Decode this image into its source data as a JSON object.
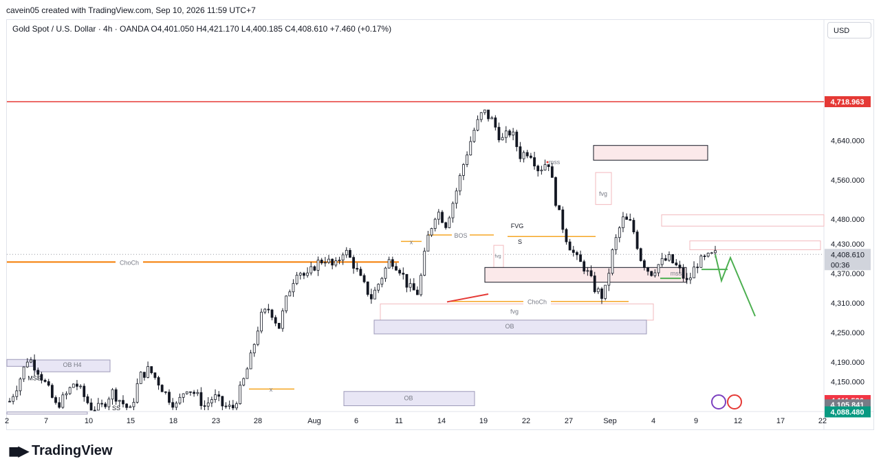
{
  "header": {
    "attribution": "cavein05 created with TradingView.com, Sep 10, 2026 11:59 UTC+7"
  },
  "legend": {
    "symbol": "Gold Spot / U.S. Dollar · 4h · OANDA",
    "open": "O4,401.050",
    "high": "H4,421.170",
    "low": "L4,400.185",
    "close": "C4,408.610",
    "change": "+7.460 (+0.17%)"
  },
  "currency_button": "USD",
  "brand": "TradingView",
  "colors": {
    "up": "#131722",
    "down": "#131722",
    "red_line": "#e53935",
    "orange": "#f57c00",
    "gold": "#f5a623",
    "zone_pink": "#fbe9ea",
    "zone_purple": "#e8e6f5",
    "price_label": "#d1d4dc",
    "green": "#4caf50"
  },
  "price_axis": {
    "ticks": [
      "4,640.000",
      "4,560.000",
      "4,480.000",
      "4,430.000",
      "4,370.000",
      "4,310.000",
      "4,250.000",
      "4,190.000",
      "4,150.000"
    ],
    "labels": {
      "red_level": "4,718.963",
      "current_price": "4,408.610",
      "countdown": "00:36",
      "level_1": "4,111.536",
      "level_2": "4,105.841",
      "level_3": "4,088.480"
    }
  },
  "time_axis": [
    "2",
    "7",
    "10",
    "15",
    "18",
    "23",
    "28",
    "Aug",
    "6",
    "11",
    "14",
    "19",
    "22",
    "27",
    "Sep",
    "4",
    "9",
    "12",
    "17",
    "22"
  ],
  "annotations": {
    "choch_1": "ChoCh",
    "choch_2": "ChoCh",
    "bos": "BOS",
    "x_1": "x",
    "x_2": "x",
    "s": "S",
    "fvg_1": "FVG",
    "fvg_2": "fvg",
    "fvg_3": "fvg",
    "fvg_4": "fvg",
    "mss_1": "mss",
    "mss_2": "mss",
    "mss_3": "MSS",
    "ob_1": "OB",
    "ob_2": "OB",
    "ob_h4": "OB H4",
    "ss": "SS"
  },
  "chart_data": {
    "type": "candlestick",
    "title": "Gold Spot / U.S. Dollar · 4h · OANDA",
    "y_range": [
      4080,
      4760
    ],
    "key_levels": [
      4718.963,
      4111.536,
      4105.841,
      4088.48
    ],
    "last_close": 4408.61,
    "series": [
      {
        "name": "XAUUSD",
        "close_path": [
          4110,
          4150,
          4200,
          4175,
          4140,
          4100,
          4120,
          4150,
          4120,
          4090,
          4100,
          4130,
          4110,
          4090,
          4160,
          4175,
          4150,
          4120,
          4100,
          4140,
          4125,
          4100,
          4120,
          4100,
          4095,
          4140,
          4200,
          4280,
          4300,
          4260,
          4330,
          4380,
          4360,
          4390,
          4400,
          4380,
          4420,
          4390,
          4350,
          4320,
          4360,
          4400,
          4380,
          4340,
          4330,
          4440,
          4500,
          4470,
          4530,
          4600,
          4660,
          4700,
          4680,
          4640,
          4660,
          4610,
          4620,
          4580,
          4600,
          4500,
          4440,
          4400,
          4380,
          4340,
          4320,
          4420,
          4480,
          4470,
          4400,
          4370,
          4390,
          4400,
          4380,
          4350,
          4390,
          4400,
          4408.61
        ]
      },
      {
        "name": "projection",
        "path": [
          4408.61,
          4355,
          4402,
          4283
        ]
      }
    ]
  }
}
